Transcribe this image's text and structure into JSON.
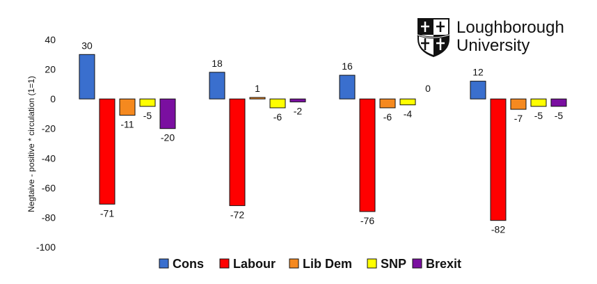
{
  "logo": {
    "line1": "Loughborough",
    "line2": "University"
  },
  "chart_data": {
    "type": "bar",
    "title": "",
    "xlabel": "",
    "ylabel": "Negtaive - positive * circulation (1=1)",
    "ylim": [
      -100,
      40
    ],
    "yticks": [
      40,
      20,
      0,
      -20,
      -40,
      -60,
      -80,
      -100
    ],
    "grid": false,
    "legend_position": "bottom",
    "categories": [
      "",
      "",
      "",
      ""
    ],
    "series": [
      {
        "name": "Cons",
        "color": "#3a6fce",
        "values": [
          30,
          18,
          16,
          12
        ]
      },
      {
        "name": "Labour",
        "color": "#ff0000",
        "values": [
          -71,
          -72,
          -76,
          -82
        ]
      },
      {
        "name": "Lib Dem",
        "color": "#f5891f",
        "values": [
          -11,
          1,
          -6,
          -7
        ]
      },
      {
        "name": "SNP",
        "color": "#ffff00",
        "values": [
          -5,
          -6,
          -4,
          -5
        ]
      },
      {
        "name": "Brexit",
        "color": "#7a0fa0",
        "values": [
          -20,
          -2,
          0,
          -5
        ]
      }
    ]
  }
}
